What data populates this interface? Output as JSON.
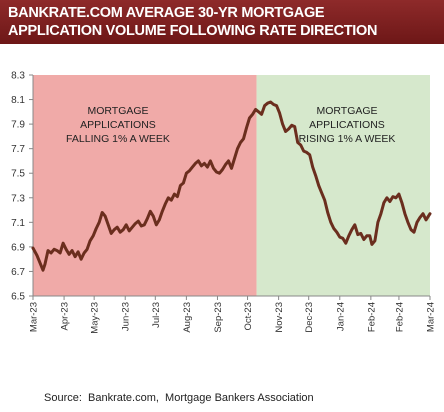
{
  "header": {
    "title_line1": "BANKRATE.COM AVERAGE 30-YR MORTGAGE",
    "title_line2": "APPLICATION VOLUME FOLLOWING RATE DIRECTION"
  },
  "footer": {
    "source": "Source:  Bankrate.com,  Mortgage Bankers Association"
  },
  "colors": {
    "falling_region": "#f0aaa8",
    "rising_region": "#d6e8cc",
    "line": "#6b2e1e",
    "title_bg": "#7a1f1f"
  },
  "chart_data": {
    "type": "line",
    "title": "BANKRATE.COM AVERAGE 30-YR MORTGAGE APPLICATION VOLUME FOLLOWING RATE DIRECTION",
    "xlabel": "",
    "ylabel": "",
    "ylim": [
      6.5,
      8.3
    ],
    "yticks": [
      6.5,
      6.7,
      6.9,
      7.1,
      7.3,
      7.5,
      7.7,
      7.9,
      8.1,
      8.3
    ],
    "ytick_labels": [
      "6.5",
      "6.7",
      "6.9",
      "7.1",
      "7.3",
      "7.5",
      "7.7",
      "7.9",
      "8.1",
      "8.3"
    ],
    "xlim": [
      "2023-03-01",
      "2024-03-31"
    ],
    "xtick_dates": [
      "2023-03-01",
      "2023-04-01",
      "2023-05-01",
      "2023-06-01",
      "2023-07-01",
      "2023-08-01",
      "2023-09-01",
      "2023-10-01",
      "2023-11-01",
      "2023-12-01",
      "2024-01-01",
      "2024-02-01",
      "2024-02-29",
      "2024-03-31"
    ],
    "xtick_labels": [
      "Mar-23",
      "Apr-23",
      "May-23",
      "Jun-23",
      "Jul-23",
      "Aug-23",
      "Sep-23",
      "Oct-23",
      "Nov-23",
      "Dec-23",
      "Jan-24",
      "Feb-24",
      "Feb-24",
      "Mar-24"
    ],
    "grid": false,
    "regions": [
      {
        "from": "2023-03-01",
        "to": "2023-10-10",
        "label_lines": [
          "MORTGAGE",
          "APPLICATIONS",
          "FALLING 1% A WEEK"
        ],
        "color": "#f0aaa8"
      },
      {
        "from": "2023-10-10",
        "to": "2024-03-31",
        "label_lines": [
          "MORTGAGE",
          "APPLICATIONS",
          "RISING 1% A WEEK"
        ],
        "color": "#d6e8cc"
      }
    ],
    "series": [
      {
        "points": [
          [
            "2023-03-01",
            6.89
          ],
          [
            "2023-03-05",
            6.83
          ],
          [
            "2023-03-09",
            6.75
          ],
          [
            "2023-03-11",
            6.71
          ],
          [
            "2023-03-13",
            6.76
          ],
          [
            "2023-03-16",
            6.87
          ],
          [
            "2023-03-19",
            6.85
          ],
          [
            "2023-03-22",
            6.88
          ],
          [
            "2023-03-25",
            6.87
          ],
          [
            "2023-03-28",
            6.85
          ],
          [
            "2023-03-31",
            6.93
          ],
          [
            "2023-04-03",
            6.88
          ],
          [
            "2023-04-06",
            6.84
          ],
          [
            "2023-04-09",
            6.87
          ],
          [
            "2023-04-12",
            6.82
          ],
          [
            "2023-04-15",
            6.86
          ],
          [
            "2023-04-18",
            6.8
          ],
          [
            "2023-04-21",
            6.85
          ],
          [
            "2023-04-24",
            6.88
          ],
          [
            "2023-04-27",
            6.95
          ],
          [
            "2023-04-30",
            6.99
          ],
          [
            "2023-05-03",
            7.05
          ],
          [
            "2023-05-06",
            7.1
          ],
          [
            "2023-05-09",
            7.18
          ],
          [
            "2023-05-12",
            7.15
          ],
          [
            "2023-05-15",
            7.08
          ],
          [
            "2023-05-18",
            7.01
          ],
          [
            "2023-05-21",
            7.04
          ],
          [
            "2023-05-24",
            7.06
          ],
          [
            "2023-05-27",
            7.02
          ],
          [
            "2023-05-30",
            7.04
          ],
          [
            "2023-06-02",
            7.08
          ],
          [
            "2023-06-05",
            7.03
          ],
          [
            "2023-06-08",
            7.06
          ],
          [
            "2023-06-11",
            7.09
          ],
          [
            "2023-06-14",
            7.11
          ],
          [
            "2023-06-17",
            7.07
          ],
          [
            "2023-06-20",
            7.08
          ],
          [
            "2023-06-23",
            7.13
          ],
          [
            "2023-06-26",
            7.19
          ],
          [
            "2023-06-29",
            7.15
          ],
          [
            "2023-07-02",
            7.08
          ],
          [
            "2023-07-05",
            7.12
          ],
          [
            "2023-07-08",
            7.19
          ],
          [
            "2023-07-11",
            7.25
          ],
          [
            "2023-07-14",
            7.3
          ],
          [
            "2023-07-17",
            7.28
          ],
          [
            "2023-07-20",
            7.33
          ],
          [
            "2023-07-23",
            7.31
          ],
          [
            "2023-07-26",
            7.4
          ],
          [
            "2023-07-29",
            7.42
          ],
          [
            "2023-08-01",
            7.5
          ],
          [
            "2023-08-04",
            7.52
          ],
          [
            "2023-08-07",
            7.55
          ],
          [
            "2023-08-10",
            7.58
          ],
          [
            "2023-08-13",
            7.6
          ],
          [
            "2023-08-16",
            7.56
          ],
          [
            "2023-08-19",
            7.58
          ],
          [
            "2023-08-22",
            7.55
          ],
          [
            "2023-08-25",
            7.6
          ],
          [
            "2023-08-28",
            7.54
          ],
          [
            "2023-08-31",
            7.51
          ],
          [
            "2023-09-03",
            7.5
          ],
          [
            "2023-09-06",
            7.53
          ],
          [
            "2023-09-09",
            7.57
          ],
          [
            "2023-09-12",
            7.6
          ],
          [
            "2023-09-15",
            7.54
          ],
          [
            "2023-09-18",
            7.62
          ],
          [
            "2023-09-21",
            7.7
          ],
          [
            "2023-09-24",
            7.75
          ],
          [
            "2023-09-27",
            7.78
          ],
          [
            "2023-09-30",
            7.87
          ],
          [
            "2023-10-03",
            7.95
          ],
          [
            "2023-10-06",
            7.98
          ],
          [
            "2023-10-09",
            8.02
          ],
          [
            "2023-10-12",
            8.0
          ],
          [
            "2023-10-15",
            7.98
          ],
          [
            "2023-10-18",
            8.05
          ],
          [
            "2023-10-21",
            8.07
          ],
          [
            "2023-10-24",
            8.08
          ],
          [
            "2023-10-27",
            8.06
          ],
          [
            "2023-10-30",
            8.05
          ],
          [
            "2023-11-02",
            7.99
          ],
          [
            "2023-11-05",
            7.9
          ],
          [
            "2023-11-08",
            7.84
          ],
          [
            "2023-11-11",
            7.86
          ],
          [
            "2023-11-14",
            7.89
          ],
          [
            "2023-11-17",
            7.88
          ],
          [
            "2023-11-20",
            7.75
          ],
          [
            "2023-11-23",
            7.73
          ],
          [
            "2023-11-26",
            7.68
          ],
          [
            "2023-11-29",
            7.67
          ],
          [
            "2023-12-02",
            7.65
          ],
          [
            "2023-12-05",
            7.55
          ],
          [
            "2023-12-08",
            7.48
          ],
          [
            "2023-12-11",
            7.4
          ],
          [
            "2023-12-14",
            7.34
          ],
          [
            "2023-12-17",
            7.28
          ],
          [
            "2023-12-20",
            7.18
          ],
          [
            "2023-12-23",
            7.1
          ],
          [
            "2023-12-26",
            7.05
          ],
          [
            "2023-12-29",
            7.02
          ],
          [
            "2024-01-01",
            6.98
          ],
          [
            "2024-01-04",
            6.97
          ],
          [
            "2024-01-07",
            6.93
          ],
          [
            "2024-01-10",
            6.99
          ],
          [
            "2024-01-13",
            7.04
          ],
          [
            "2024-01-16",
            7.08
          ],
          [
            "2024-01-19",
            7.0
          ],
          [
            "2024-01-22",
            7.01
          ],
          [
            "2024-01-25",
            6.96
          ],
          [
            "2024-01-28",
            6.99
          ],
          [
            "2024-01-31",
            6.99
          ],
          [
            "2024-02-02",
            6.92
          ],
          [
            "2024-02-05",
            6.95
          ],
          [
            "2024-02-08",
            7.1
          ],
          [
            "2024-02-11",
            7.17
          ],
          [
            "2024-02-14",
            7.26
          ],
          [
            "2024-02-17",
            7.3
          ],
          [
            "2024-02-20",
            7.27
          ],
          [
            "2024-02-23",
            7.31
          ],
          [
            "2024-02-26",
            7.3
          ],
          [
            "2024-02-29",
            7.33
          ],
          [
            "2024-03-03",
            7.26
          ],
          [
            "2024-03-06",
            7.17
          ],
          [
            "2024-03-09",
            7.1
          ],
          [
            "2024-03-12",
            7.04
          ],
          [
            "2024-03-15",
            7.02
          ],
          [
            "2024-03-18",
            7.1
          ],
          [
            "2024-03-21",
            7.14
          ],
          [
            "2024-03-24",
            7.17
          ],
          [
            "2024-03-27",
            7.12
          ],
          [
            "2024-03-31",
            7.17
          ]
        ]
      }
    ]
  }
}
